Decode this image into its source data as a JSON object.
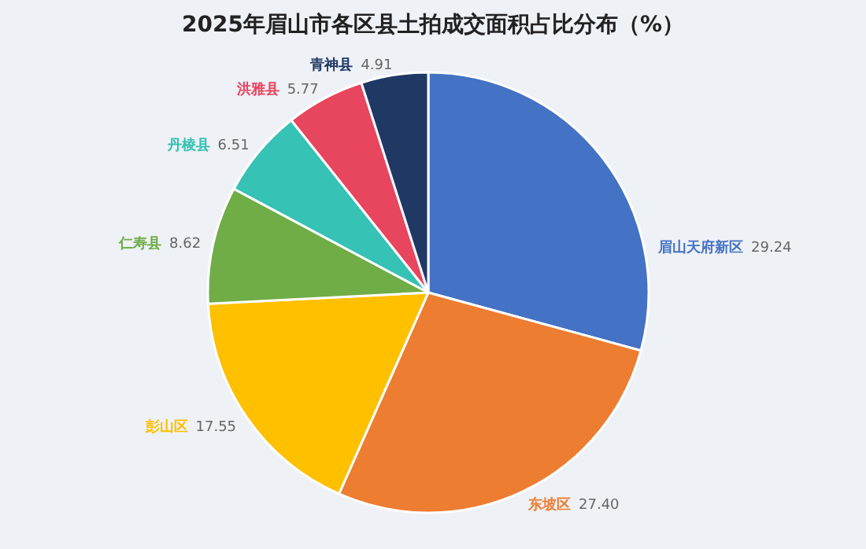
{
  "chart_data": {
    "type": "pie",
    "title": "2025年眉山市各区县土拍成交面积占比分布（%）",
    "categories": [
      "眉山天府新区",
      "东坡区",
      "彭山区",
      "仁寿县",
      "丹棱县",
      "洪雅县",
      "青神县"
    ],
    "values": [
      29.24,
      27.4,
      17.55,
      8.62,
      6.51,
      5.77,
      4.91
    ],
    "colors": [
      "#4472c4",
      "#ed7d31",
      "#ffc000",
      "#70ad47",
      "#36c2b4",
      "#e8455f",
      "#203864"
    ],
    "value_labels": [
      "29.24",
      "27.40",
      "17.55",
      "8.62",
      "6.51",
      "5.77",
      "4.91"
    ]
  }
}
